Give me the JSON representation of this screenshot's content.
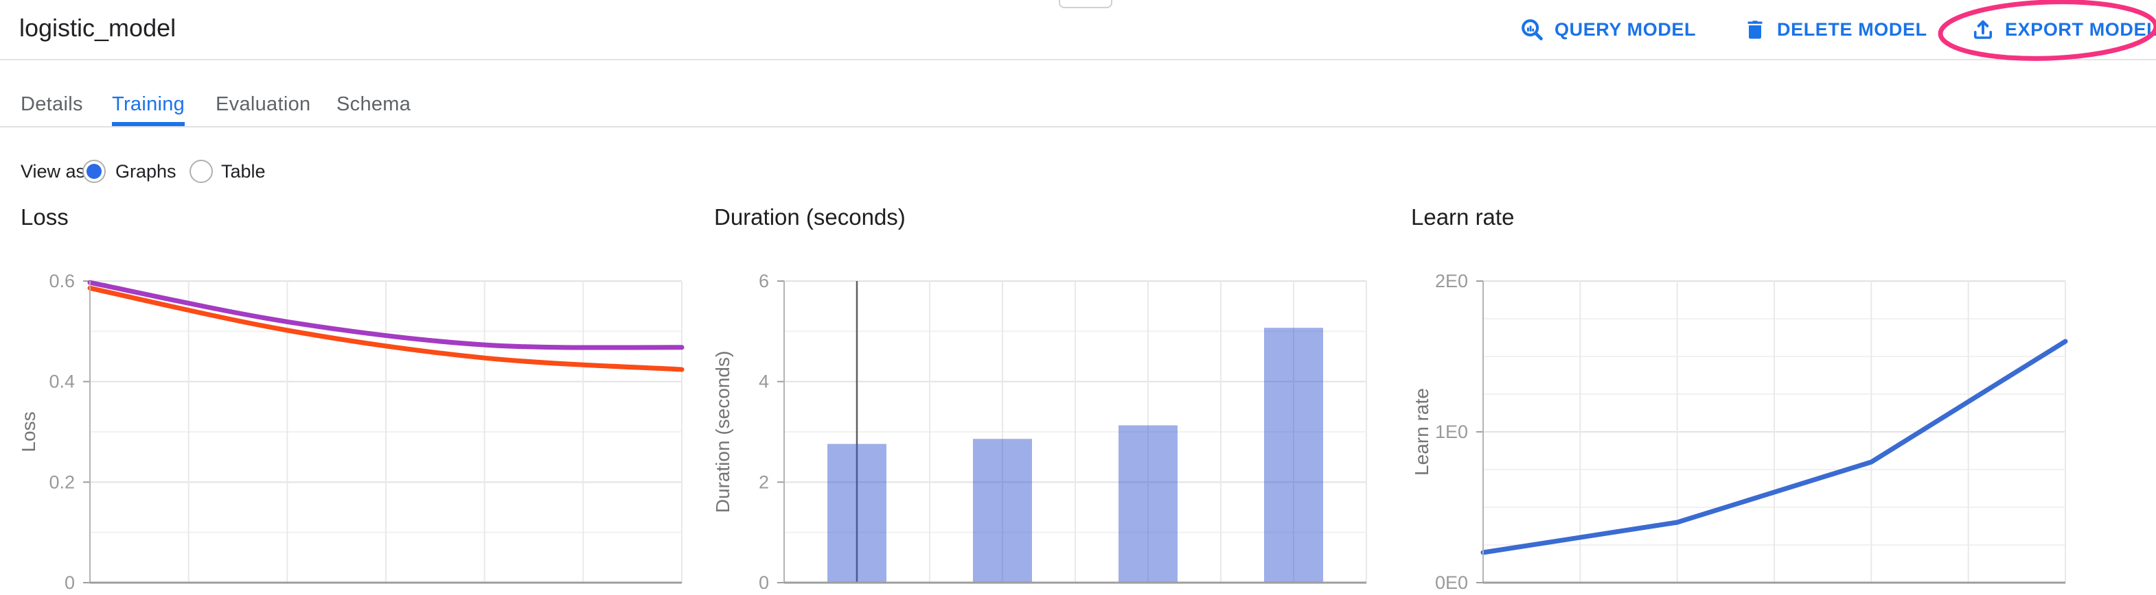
{
  "header": {
    "title": "logistic_model"
  },
  "toolbar": {
    "query_label": "QUERY MODEL",
    "delete_label": "DELETE MODEL",
    "export_label": "EXPORT MODEL"
  },
  "annotation": {
    "shape": "ellipse",
    "around": "export-model-button",
    "color": "#f5327f"
  },
  "tabs": {
    "items": [
      {
        "label": "Details",
        "active": false
      },
      {
        "label": "Training",
        "active": true
      },
      {
        "label": "Evaluation",
        "active": false
      },
      {
        "label": "Schema",
        "active": false
      }
    ]
  },
  "view_as": {
    "label": "View as",
    "options": [
      {
        "label": "Graphs",
        "selected": true
      },
      {
        "label": "Table",
        "selected": false
      }
    ]
  },
  "colors": {
    "accent_blue": "#1a73e8",
    "annotation_pink": "#f5327f",
    "loss_purple": "#a43bc2",
    "loss_orange": "#fb4b16",
    "duration_bar_blue": "#3455cf",
    "learn_rate_blue": "#3a6bd2"
  },
  "chart_data": [
    {
      "type": "line",
      "title": "Loss",
      "ylabel": "Loss",
      "x": [
        0,
        1,
        2,
        3
      ],
      "series": [
        {
          "name": "series-1",
          "color": "#a43bc2",
          "values": [
            0.597,
            0.519,
            0.473,
            0.468
          ]
        },
        {
          "name": "series-2",
          "color": "#fb4b16",
          "values": [
            0.586,
            0.502,
            0.447,
            0.424
          ]
        }
      ],
      "ylim": [
        0,
        0.6
      ],
      "yticks": [
        [
          0,
          "0"
        ],
        [
          0.2,
          "0.2"
        ],
        [
          0.4,
          "0.4"
        ],
        [
          0.6,
          "0.6"
        ]
      ],
      "y_minor": [
        0.1,
        0.3,
        0.5
      ],
      "smooth": true,
      "v_intervals": 6,
      "grid": true,
      "legend": "none"
    },
    {
      "type": "bar",
      "title": "Duration (seconds)",
      "ylabel": "Duration (seconds)",
      "x": [
        0,
        1,
        2,
        3
      ],
      "values": [
        2.76,
        2.86,
        3.13,
        5.07
      ],
      "bar_color": "#3455cf",
      "bar_opacity": 0.48,
      "ylim": [
        0,
        6
      ],
      "yticks": [
        [
          0,
          "0"
        ],
        [
          2,
          "2"
        ],
        [
          4,
          "4"
        ],
        [
          6,
          "6"
        ]
      ],
      "y_minor": [
        1,
        3,
        5
      ],
      "v_intervals": 8,
      "marker_x_fraction": 0.125,
      "grid": true,
      "legend": "none"
    },
    {
      "type": "line",
      "title": "Learn rate",
      "ylabel": "Learn rate",
      "x": [
        0,
        1,
        2,
        3
      ],
      "series": [
        {
          "name": "series-1",
          "color": "#3a6bd2",
          "values": [
            0.2,
            0.4,
            0.8,
            1.6
          ]
        }
      ],
      "ylim": [
        0,
        2
      ],
      "yticks": [
        [
          0,
          "0E0"
        ],
        [
          1,
          "1E0"
        ],
        [
          2,
          "2E0"
        ]
      ],
      "y_minor": [
        0.25,
        0.5,
        0.75,
        1.25,
        1.5,
        1.75
      ],
      "smooth": false,
      "v_intervals": 6,
      "grid": true,
      "legend": "none"
    }
  ]
}
